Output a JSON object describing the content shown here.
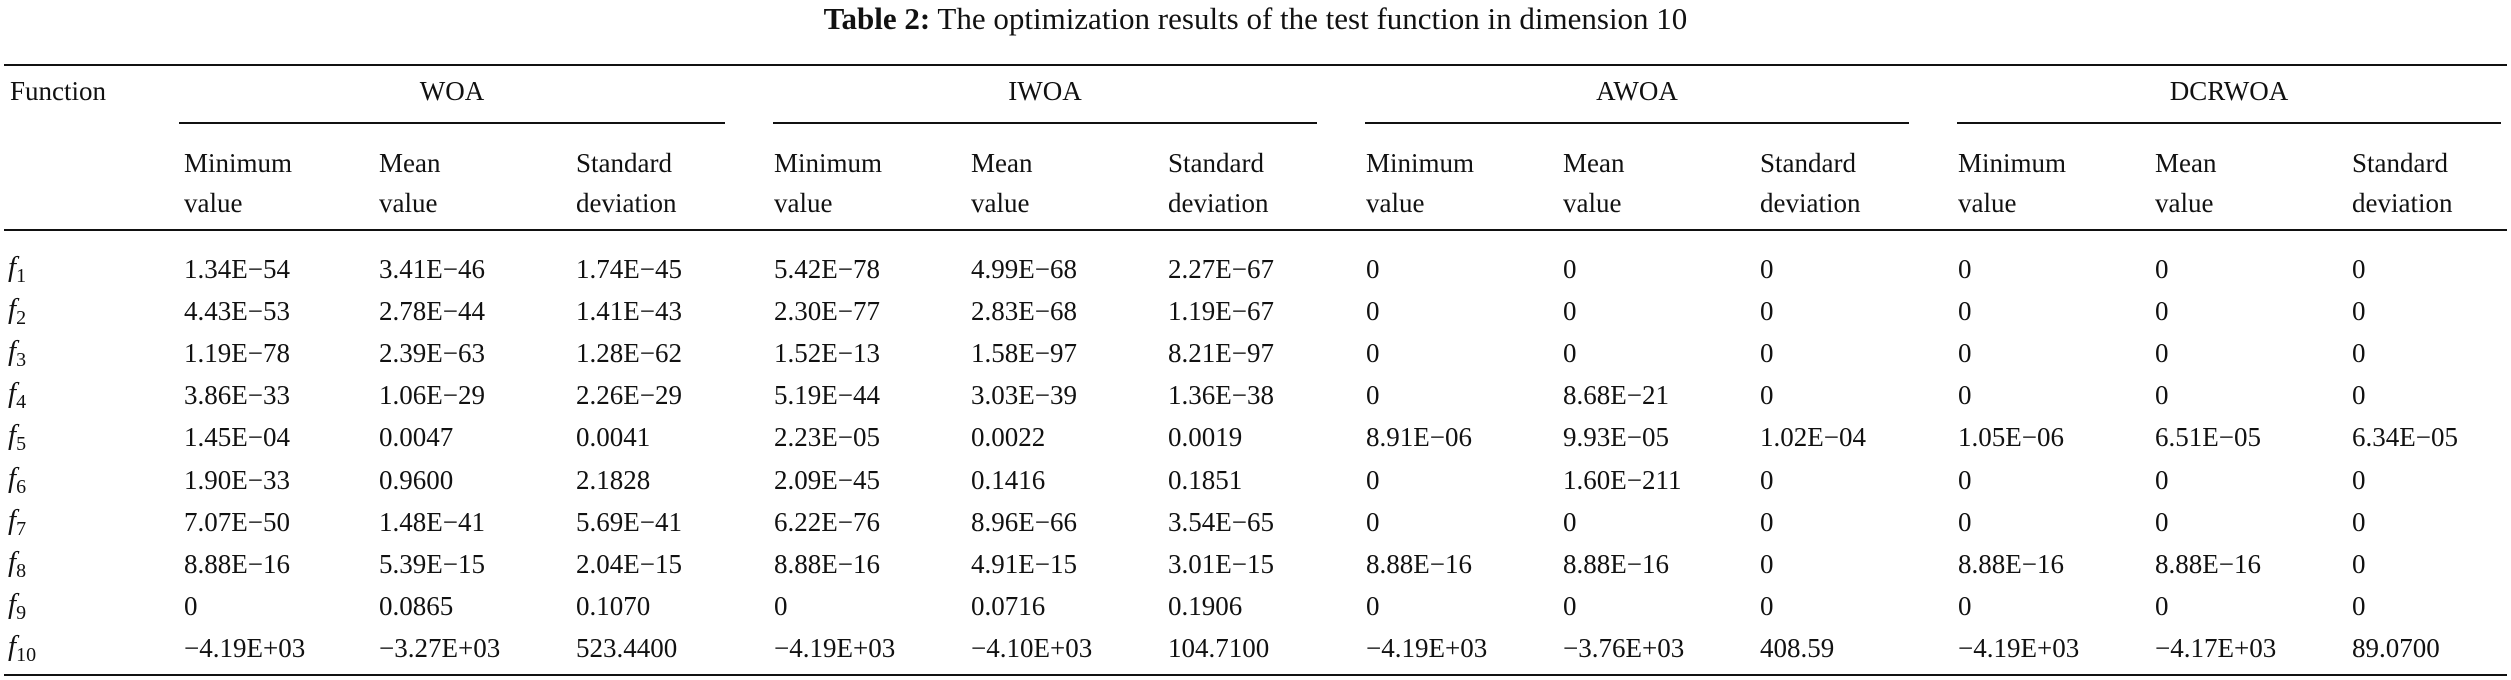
{
  "title": {
    "label": "Table 2:",
    "text": "The optimization results of the test function in dimension 10"
  },
  "table": {
    "row_header": "Function",
    "groups": [
      "WOA",
      "IWOA",
      "AWOA",
      "DCRWOA"
    ],
    "subheaders": [
      [
        "Minimum",
        "value"
      ],
      [
        "Mean",
        "value"
      ],
      [
        "Standard",
        "deviation"
      ]
    ],
    "rows": [
      {
        "fn": "f",
        "sub": "1",
        "values": [
          "1.34E−54",
          "3.41E−46",
          "1.74E−45",
          "5.42E−78",
          "4.99E−68",
          "2.27E−67",
          "0",
          "0",
          "0",
          "0",
          "0",
          "0"
        ]
      },
      {
        "fn": "f",
        "sub": "2",
        "values": [
          "4.43E−53",
          "2.78E−44",
          "1.41E−43",
          "2.30E−77",
          "2.83E−68",
          "1.19E−67",
          "0",
          "0",
          "0",
          "0",
          "0",
          "0"
        ]
      },
      {
        "fn": "f",
        "sub": "3",
        "values": [
          "1.19E−78",
          "2.39E−63",
          "1.28E−62",
          "1.52E−13",
          "1.58E−97",
          "8.21E−97",
          "0",
          "0",
          "0",
          "0",
          "0",
          "0"
        ]
      },
      {
        "fn": "f",
        "sub": "4",
        "values": [
          "3.86E−33",
          "1.06E−29",
          "2.26E−29",
          "5.19E−44",
          "3.03E−39",
          "1.36E−38",
          "0",
          "8.68E−21",
          "0",
          "0",
          "0",
          "0"
        ]
      },
      {
        "fn": "f",
        "sub": "5",
        "values": [
          "1.45E−04",
          "0.0047",
          "0.0041",
          "2.23E−05",
          "0.0022",
          "0.0019",
          "8.91E−06",
          "9.93E−05",
          "1.02E−04",
          "1.05E−06",
          "6.51E−05",
          "6.34E−05"
        ]
      },
      {
        "fn": "f",
        "sub": "6",
        "values": [
          "1.90E−33",
          "0.9600",
          "2.1828",
          "2.09E−45",
          "0.1416",
          "0.1851",
          "0",
          "1.60E−211",
          "0",
          "0",
          "0",
          "0"
        ]
      },
      {
        "fn": "f",
        "sub": "7",
        "values": [
          "7.07E−50",
          "1.48E−41",
          "5.69E−41",
          "6.22E−76",
          "8.96E−66",
          "3.54E−65",
          "0",
          "0",
          "0",
          "0",
          "0",
          "0"
        ]
      },
      {
        "fn": "f",
        "sub": "8",
        "values": [
          "8.88E−16",
          "5.39E−15",
          "2.04E−15",
          "8.88E−16",
          "4.91E−15",
          "3.01E−15",
          "8.88E−16",
          "8.88E−16",
          "0",
          "8.88E−16",
          "8.88E−16",
          "0"
        ]
      },
      {
        "fn": "f",
        "sub": "9",
        "values": [
          "0",
          "0.0865",
          "0.1070",
          "0",
          "0.0716",
          "0.1906",
          "0",
          "0",
          "0",
          "0",
          "0",
          "0"
        ]
      },
      {
        "fn": "f",
        "sub": "10",
        "values": [
          "−4.19E+03",
          "−3.27E+03",
          "523.4400",
          "−4.19E+03",
          "−4.10E+03",
          "104.7100",
          "−4.19E+03",
          "−3.76E+03",
          "408.59",
          "−4.19E+03",
          "−4.17E+03",
          "89.0700"
        ]
      }
    ]
  }
}
